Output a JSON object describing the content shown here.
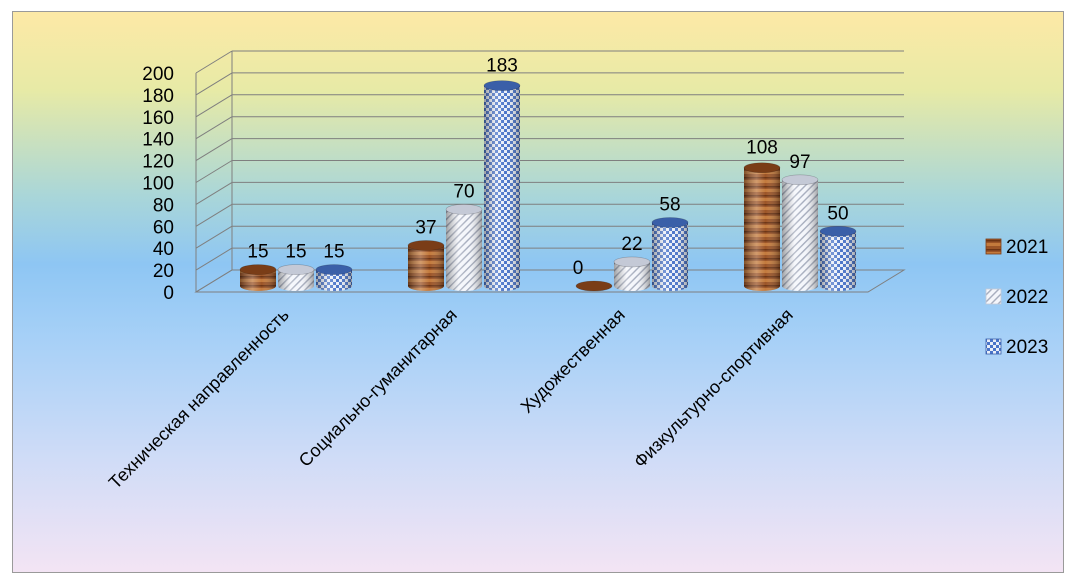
{
  "chart_data": {
    "type": "bar",
    "categories": [
      "Техническая направленность",
      "Социально-гуманитарная",
      "Художественная",
      "Физкультурно-спортивная"
    ],
    "series": [
      {
        "name": "2021",
        "values": [
          15,
          37,
          0,
          108
        ],
        "color": "#a0582a"
      },
      {
        "name": "2022",
        "values": [
          15,
          70,
          22,
          97
        ],
        "color": "#dfe4ef"
      },
      {
        "name": "2023",
        "values": [
          15,
          183,
          58,
          50
        ],
        "color": "#4a74c9"
      }
    ],
    "ylim": [
      0,
      200
    ],
    "yticks": [
      0,
      20,
      40,
      60,
      80,
      100,
      120,
      140,
      160,
      180,
      200
    ],
    "grid": true,
    "legend_position": "right",
    "style": "3d-cylinder"
  }
}
